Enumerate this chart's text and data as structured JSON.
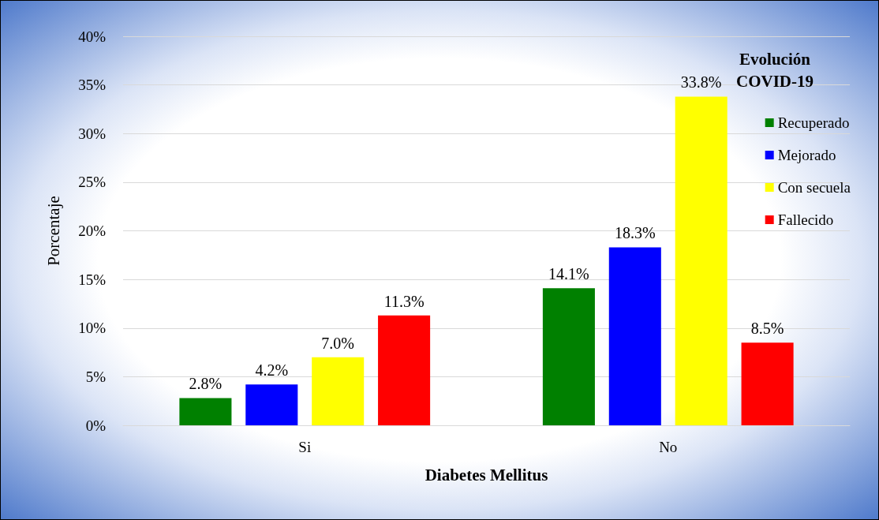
{
  "chart_data": {
    "type": "bar",
    "xlabel": "Diabetes Mellitus",
    "ylabel": "Porcentaje",
    "legend_title": "Evolución\nCOVID-19",
    "categories": [
      "Si",
      "No"
    ],
    "series": [
      {
        "name": "Recuperado",
        "color": "#008000",
        "values": [
          2.8,
          14.1
        ],
        "value_labels": [
          "2.8%",
          "14.1%"
        ]
      },
      {
        "name": "Mejorado",
        "color": "#0000ff",
        "values": [
          4.2,
          18.3
        ],
        "value_labels": [
          "4.2%",
          "18.3%"
        ]
      },
      {
        "name": "Con secuela",
        "color": "#ffff00",
        "values": [
          7.0,
          33.8
        ],
        "value_labels": [
          "7.0%",
          "33.8%"
        ]
      },
      {
        "name": "Fallecido",
        "color": "#ff0000",
        "values": [
          11.3,
          8.5
        ],
        "value_labels": [
          "11.3%",
          "8.5%"
        ]
      }
    ],
    "ylim": [
      0,
      40
    ],
    "yticks": [
      {
        "value": 0,
        "label": "0%"
      },
      {
        "value": 5,
        "label": "5%"
      },
      {
        "value": 10,
        "label": "10%"
      },
      {
        "value": 15,
        "label": "15%"
      },
      {
        "value": 20,
        "label": "20%"
      },
      {
        "value": 25,
        "label": "25%"
      },
      {
        "value": 30,
        "label": "30%"
      },
      {
        "value": 35,
        "label": "35%"
      },
      {
        "value": 40,
        "label": "40%"
      }
    ],
    "grid": "y",
    "legend": "top right"
  }
}
